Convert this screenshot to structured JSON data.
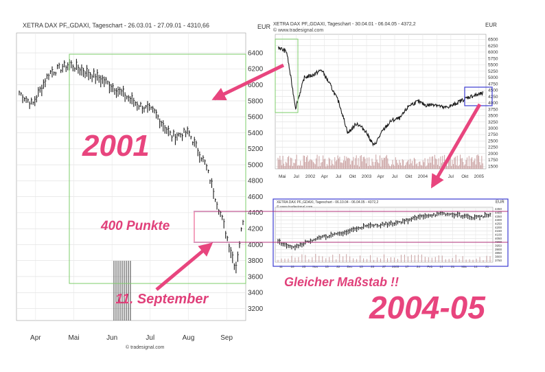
{
  "colors": {
    "annotation": "#e8457e",
    "highlight_box": "#7dcc6a",
    "blue_box": "#3a3ad0",
    "magenta_line": "#b0307a",
    "price": "#1a1a1a",
    "volume": "#c9a0a0"
  },
  "chart_data": [
    {
      "type": "line",
      "subtype": "ohlc",
      "title": "XETRA DAX PF,,GDAXI, Tageschart - 26.03.01 - 27.09.01 - 4310,66",
      "currency": "EUR",
      "credit": "© tradesignal.com",
      "yticks": [
        "6400",
        "6200",
        "6000",
        "5800",
        "5600",
        "5400",
        "5200",
        "5000",
        "4800",
        "4600",
        "4400",
        "4200",
        "4000",
        "3800",
        "3600",
        "3400",
        "3200"
      ],
      "ylim": [
        3050,
        6650
      ],
      "xticks": [
        "Apr",
        "Mai",
        "Jun",
        "Jul",
        "Aug",
        "Sep"
      ],
      "x": [
        "2001-03-26",
        "2001-04-06",
        "2001-04-20",
        "2001-05-07",
        "2001-05-21",
        "2001-06-04",
        "2001-06-18",
        "2001-07-02",
        "2001-07-16",
        "2001-07-30",
        "2001-08-13",
        "2001-08-27",
        "2001-09-10",
        "2001-09-21",
        "2001-09-27"
      ],
      "values": [
        5900,
        5750,
        6150,
        6250,
        6150,
        6050,
        5900,
        5750,
        5650,
        5350,
        5400,
        5000,
        4300,
        3700,
        4310
      ],
      "grid": true,
      "legend": "none"
    },
    {
      "type": "line",
      "title": "XETRA DAX PF,,GDAXI, Tageschart - 30.04.01 - 06.04.05 - 4372,2",
      "credit": "© www.tradesignal.com",
      "currency": "EUR",
      "yticks": [
        "6500",
        "6250",
        "6000",
        "5750",
        "5500",
        "5250",
        "5000",
        "4750",
        "4500",
        "4250",
        "4000",
        "3750",
        "3500",
        "3250",
        "3000",
        "2750",
        "2500",
        "2250",
        "2000",
        "1750",
        "1500"
      ],
      "ylim": [
        1400,
        6700
      ],
      "xticks": [
        "Mai",
        "Jul",
        "2002",
        "Apr",
        "Jul",
        "Okt",
        "2003",
        "Apr",
        "Jul",
        "Okt",
        "2004",
        "Apr",
        "Jul",
        "Okt",
        "2005"
      ],
      "x": [
        "2001-05",
        "2001-07",
        "2001-09",
        "2001-11",
        "2002-01",
        "2002-03",
        "2002-05",
        "2002-07",
        "2002-09",
        "2002-11",
        "2003-01",
        "2003-03",
        "2003-05",
        "2003-07",
        "2003-09",
        "2003-11",
        "2004-01",
        "2004-03",
        "2004-05",
        "2004-07",
        "2004-09",
        "2004-11",
        "2005-01",
        "2005-04"
      ],
      "values": [
        6200,
        6000,
        3800,
        5000,
        5100,
        5300,
        4700,
        4000,
        2800,
        3200,
        2900,
        2300,
        2900,
        3300,
        3400,
        3900,
        4050,
        3900,
        3950,
        3800,
        3900,
        4100,
        4250,
        4372
      ],
      "grid": true,
      "legend": "none"
    },
    {
      "type": "line",
      "subtype": "ohlc",
      "title": "XETRA DAX PF,,GDAXI, Tageschart - 06.10.04 - 06.04.05 - 4372,2",
      "credit": "© www.tradesignal.com",
      "currency": "EUR",
      "yticks": [
        "4450",
        "4400",
        "4350",
        "4300",
        "4250",
        "4200",
        "4150",
        "4100",
        "4050",
        "4000",
        "3950",
        "3900",
        "3850",
        "3800",
        "3750"
      ],
      "ylim": [
        3725,
        4475
      ],
      "xticks": [
        "11",
        "18",
        "25",
        "Nov",
        "15",
        "22",
        "Dez",
        "13",
        "20",
        "27",
        "2005",
        "17",
        "24",
        "Feb",
        "14",
        "21",
        "Mär",
        "14",
        "21"
      ],
      "x": [
        "2004-10-06",
        "2004-10-20",
        "2004-11-03",
        "2004-11-17",
        "2004-12-01",
        "2004-12-15",
        "2004-12-29",
        "2005-01-12",
        "2005-01-26",
        "2005-02-09",
        "2005-02-23",
        "2005-03-09",
        "2005-03-23",
        "2005-04-06"
      ],
      "values": [
        4000,
        3930,
        4020,
        4080,
        4120,
        4200,
        4230,
        4250,
        4300,
        4360,
        4380,
        4370,
        4330,
        4372
      ],
      "grid": true,
      "legend": "none"
    }
  ],
  "annotations": {
    "year_2001": "2001",
    "points_400": "400 Punkte",
    "sept11": "11. September",
    "same_scale": "Gleicher Maßstab !!",
    "year_2004_05": "2004-05"
  }
}
